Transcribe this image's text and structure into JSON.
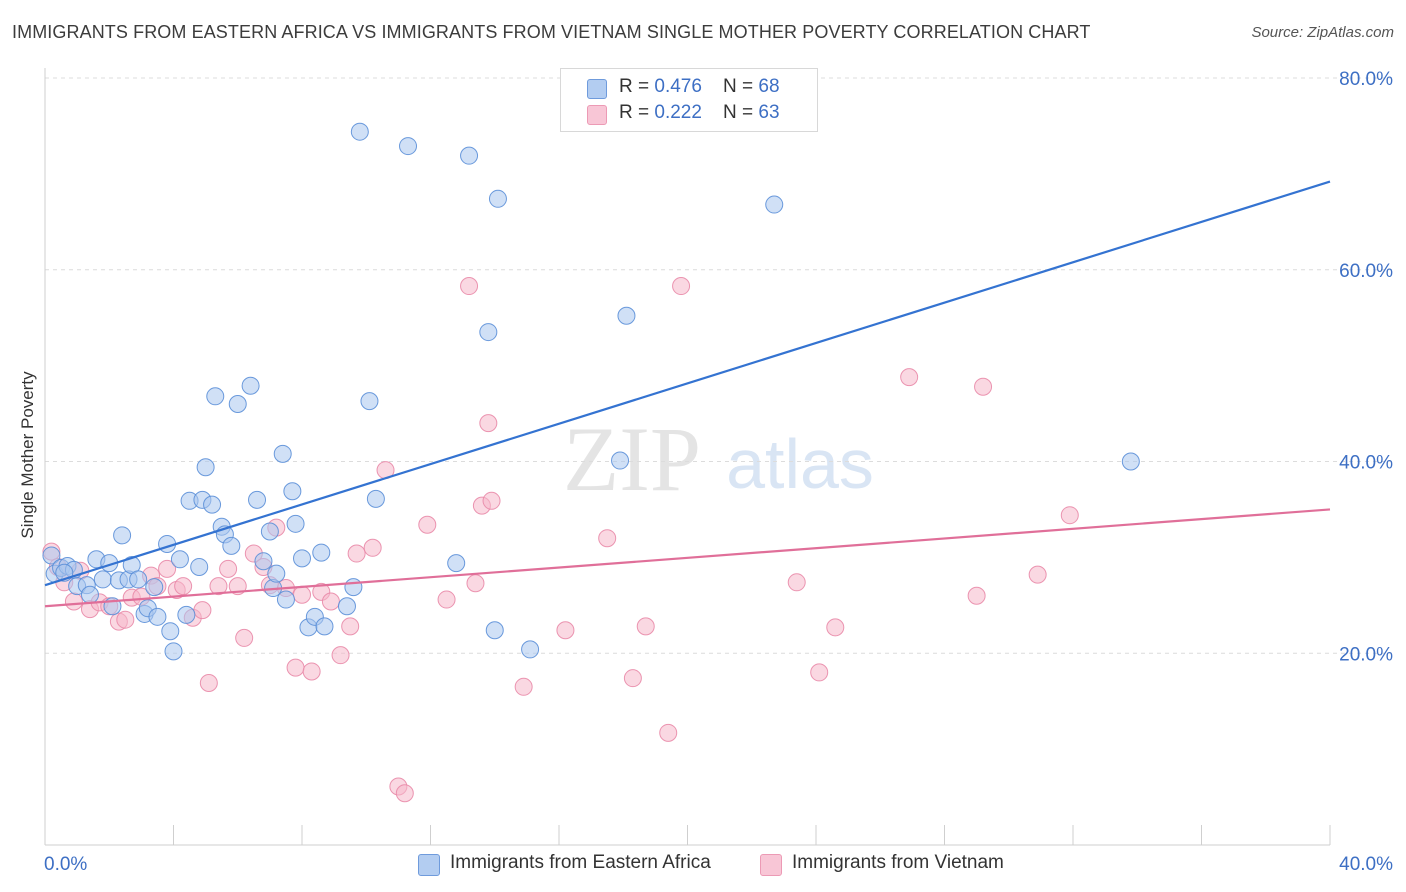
{
  "header": {
    "title": "IMMIGRANTS FROM EASTERN AFRICA VS IMMIGRANTS FROM VIETNAM SINGLE MOTHER POVERTY CORRELATION CHART",
    "source": "Source: ZipAtlas.com"
  },
  "watermark": {
    "zip": "ZIP",
    "atlas": "atlas"
  },
  "legend": {
    "series1": {
      "r_label": "R = ",
      "r_value": "0.476",
      "n_label": "N = ",
      "n_value": "68"
    },
    "series2": {
      "r_label": "R = ",
      "r_value": "0.222",
      "n_label": "N = ",
      "n_value": "63"
    }
  },
  "colors": {
    "blue_fill": "#a9c6ef",
    "blue_stroke": "#5b8fd8",
    "blue_line": "#3473d1",
    "pink_fill": "#f5b8cb",
    "pink_stroke": "#e98aa9",
    "pink_line": "#e06f99",
    "grid": "#dcdcdc",
    "axis_text": "#3d6fc4"
  },
  "chart_data": {
    "type": "scatter",
    "title": "IMMIGRANTS FROM EASTERN AFRICA VS IMMIGRANTS FROM VIETNAM SINGLE MOTHER POVERTY CORRELATION CHART",
    "xlabel": "",
    "ylabel": "Single Mother Poverty",
    "xlim": [
      0,
      40
    ],
    "ylim": [
      0,
      80
    ],
    "x_tick_labels": [
      "0.0%",
      "40.0%"
    ],
    "y_ticks": [
      20,
      40,
      60,
      80
    ],
    "y_tick_labels": [
      "20.0%",
      "40.0%",
      "60.0%",
      "80.0%"
    ],
    "grid": true,
    "legend_position": "top-center",
    "series": [
      {
        "name": "Immigrants from Eastern Africa",
        "color": "#a9c6ef",
        "R": 0.476,
        "N": 68,
        "trend": {
          "x": [
            0,
            40
          ],
          "y": [
            27.1,
            69.2
          ]
        },
        "points": [
          [
            0.2,
            30.2
          ],
          [
            0.3,
            28.3
          ],
          [
            0.5,
            28.9
          ],
          [
            0.7,
            29.1
          ],
          [
            0.9,
            28.7
          ],
          [
            1.0,
            27.0
          ],
          [
            1.3,
            27.1
          ],
          [
            1.4,
            26.1
          ],
          [
            1.6,
            29.8
          ],
          [
            1.8,
            27.7
          ],
          [
            2.0,
            29.4
          ],
          [
            2.1,
            24.9
          ],
          [
            2.3,
            27.6
          ],
          [
            2.4,
            32.3
          ],
          [
            2.6,
            27.7
          ],
          [
            2.7,
            29.2
          ],
          [
            2.9,
            27.7
          ],
          [
            3.1,
            24.1
          ],
          [
            3.2,
            24.7
          ],
          [
            3.4,
            26.9
          ],
          [
            3.5,
            23.8
          ],
          [
            3.8,
            31.4
          ],
          [
            3.9,
            22.3
          ],
          [
            4.0,
            20.2
          ],
          [
            4.2,
            29.8
          ],
          [
            4.4,
            24.0
          ],
          [
            4.5,
            35.9
          ],
          [
            4.8,
            29.0
          ],
          [
            4.9,
            36.0
          ],
          [
            5.0,
            39.4
          ],
          [
            5.2,
            35.5
          ],
          [
            5.3,
            46.8
          ],
          [
            5.5,
            33.2
          ],
          [
            5.6,
            32.4
          ],
          [
            5.8,
            31.2
          ],
          [
            6.0,
            46.0
          ],
          [
            6.4,
            47.9
          ],
          [
            6.6,
            36.0
          ],
          [
            6.8,
            29.6
          ],
          [
            7.0,
            32.7
          ],
          [
            7.1,
            26.8
          ],
          [
            7.2,
            28.3
          ],
          [
            7.4,
            40.8
          ],
          [
            7.5,
            25.6
          ],
          [
            7.7,
            36.9
          ],
          [
            7.8,
            33.5
          ],
          [
            8.0,
            29.9
          ],
          [
            8.2,
            22.7
          ],
          [
            8.4,
            23.8
          ],
          [
            8.6,
            30.5
          ],
          [
            8.7,
            22.8
          ],
          [
            9.4,
            24.9
          ],
          [
            9.6,
            26.9
          ],
          [
            9.8,
            74.4
          ],
          [
            10.1,
            46.3
          ],
          [
            10.3,
            36.1
          ],
          [
            11.3,
            72.9
          ],
          [
            12.8,
            29.4
          ],
          [
            13.2,
            71.9
          ],
          [
            13.8,
            53.5
          ],
          [
            14.0,
            22.4
          ],
          [
            14.1,
            67.4
          ],
          [
            15.1,
            20.4
          ],
          [
            17.9,
            40.1
          ],
          [
            18.1,
            55.2
          ],
          [
            22.7,
            66.8
          ],
          [
            33.8,
            40.0
          ],
          [
            0.6,
            28.4
          ]
        ]
      },
      {
        "name": "Immigrants from Vietnam",
        "color": "#f5b8cb",
        "R": 0.222,
        "N": 63,
        "trend": {
          "x": [
            0,
            40
          ],
          "y": [
            24.9,
            35.0
          ]
        },
        "points": [
          [
            0.2,
            30.6
          ],
          [
            0.4,
            29.0
          ],
          [
            0.6,
            27.4
          ],
          [
            0.9,
            25.4
          ],
          [
            1.1,
            28.6
          ],
          [
            1.4,
            24.6
          ],
          [
            1.7,
            25.3
          ],
          [
            2.0,
            24.9
          ],
          [
            2.3,
            23.3
          ],
          [
            2.5,
            23.5
          ],
          [
            2.7,
            25.8
          ],
          [
            3.0,
            25.9
          ],
          [
            3.3,
            28.1
          ],
          [
            3.5,
            27.0
          ],
          [
            3.8,
            28.8
          ],
          [
            4.1,
            26.6
          ],
          [
            4.3,
            27.0
          ],
          [
            4.6,
            23.7
          ],
          [
            4.9,
            24.5
          ],
          [
            5.1,
            16.9
          ],
          [
            5.4,
            27.0
          ],
          [
            5.7,
            28.8
          ],
          [
            6.0,
            27.0
          ],
          [
            6.2,
            21.6
          ],
          [
            6.5,
            30.4
          ],
          [
            6.8,
            29.0
          ],
          [
            7.0,
            27.1
          ],
          [
            7.2,
            33.1
          ],
          [
            7.5,
            26.8
          ],
          [
            7.8,
            18.5
          ],
          [
            8.0,
            26.1
          ],
          [
            8.3,
            18.1
          ],
          [
            8.6,
            26.4
          ],
          [
            8.9,
            25.4
          ],
          [
            9.2,
            19.8
          ],
          [
            9.5,
            22.8
          ],
          [
            9.7,
            30.4
          ],
          [
            10.2,
            31.0
          ],
          [
            10.6,
            39.1
          ],
          [
            11.0,
            6.1
          ],
          [
            11.2,
            5.4
          ],
          [
            11.9,
            33.4
          ],
          [
            12.5,
            25.6
          ],
          [
            13.4,
            27.3
          ],
          [
            13.6,
            35.4
          ],
          [
            13.9,
            35.9
          ],
          [
            13.8,
            44.0
          ],
          [
            13.2,
            58.3
          ],
          [
            14.9,
            16.5
          ],
          [
            16.2,
            22.4
          ],
          [
            17.5,
            32.0
          ],
          [
            18.3,
            17.4
          ],
          [
            18.7,
            22.8
          ],
          [
            19.4,
            11.7
          ],
          [
            19.8,
            58.3
          ],
          [
            23.4,
            27.4
          ],
          [
            24.1,
            18.0
          ],
          [
            24.6,
            22.7
          ],
          [
            26.9,
            48.8
          ],
          [
            29.2,
            47.8
          ],
          [
            29.0,
            26.0
          ],
          [
            30.9,
            28.2
          ],
          [
            31.9,
            34.4
          ]
        ]
      }
    ]
  },
  "bottom_legend": {
    "series1_label": "Immigrants from Eastern Africa",
    "series2_label": "Immigrants from Vietnam"
  }
}
